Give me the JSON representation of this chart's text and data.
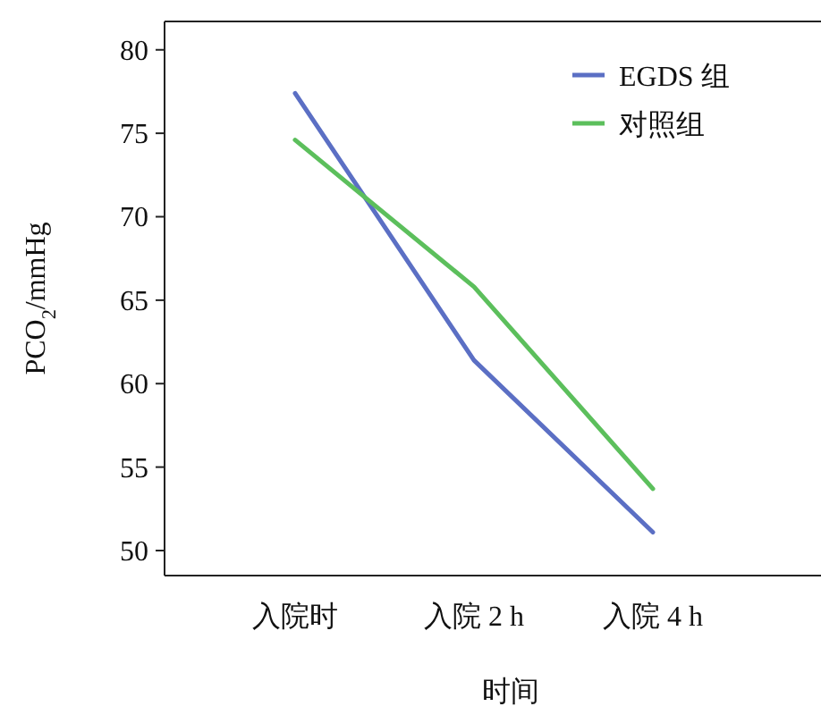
{
  "chart_data": {
    "type": "line",
    "categories": [
      "入院时",
      "入院 2 h",
      "入院 4 h"
    ],
    "xlabel": "时间",
    "ylabel": "PCO$_{2}$/mmHg",
    "ylim": [
      48.5,
      81.7
    ],
    "yticks": [
      50,
      55,
      60,
      65,
      70,
      75,
      80
    ],
    "legend": "top right",
    "grid": false,
    "marker": "none",
    "line_style": "solid",
    "series": [
      {
        "name": "EGDS 组",
        "color": "#5b6fc4",
        "values": [
          77.4,
          61.4,
          51.1
        ]
      },
      {
        "name": "对照组",
        "color": "#5cbf5c",
        "values": [
          74.6,
          65.8,
          53.7
        ]
      }
    ]
  }
}
